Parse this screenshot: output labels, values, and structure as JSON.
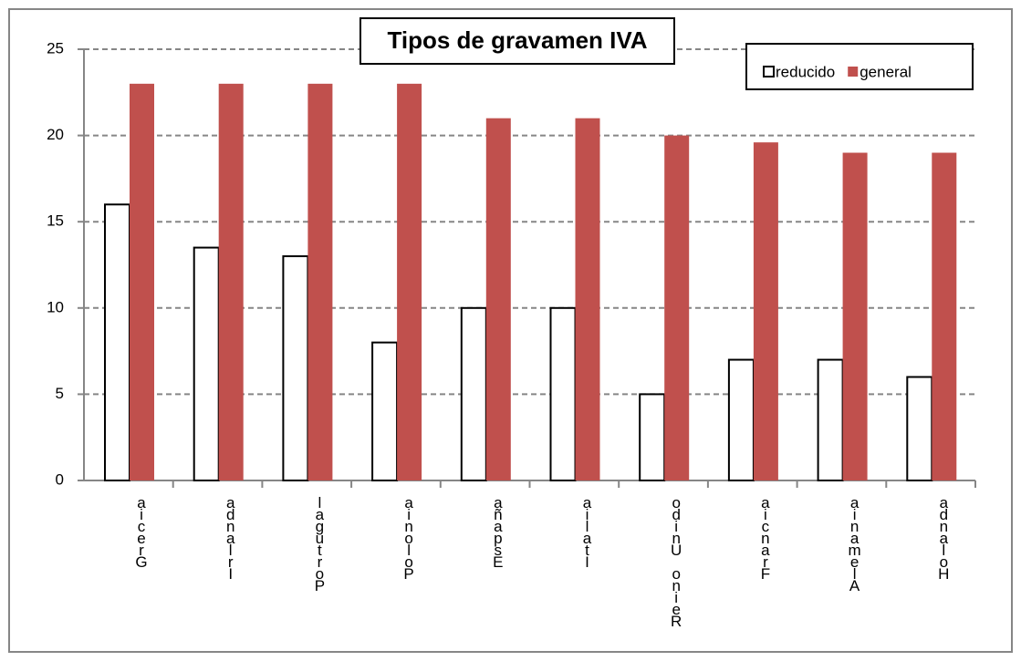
{
  "chart_data": {
    "type": "bar",
    "title": "Tipos de gravamen IVA",
    "categories": [
      "Grecia",
      "Irlanda",
      "Portugal",
      "Polonia",
      "España",
      "Italia",
      "Reino Unido",
      "Francia",
      "Alemania",
      "Holanda"
    ],
    "series": [
      {
        "name": "reducido",
        "color": "#ffffff",
        "values": [
          16,
          13.5,
          13,
          8,
          10,
          10,
          5,
          7,
          7,
          6
        ]
      },
      {
        "name": "general",
        "color": "#c0504d",
        "values": [
          23,
          23,
          23,
          23,
          21,
          21,
          20,
          19.6,
          19,
          19
        ]
      }
    ],
    "ylim": [
      0,
      25
    ],
    "yticks": [
      0,
      5,
      10,
      15,
      20,
      25
    ],
    "grid": true,
    "legend": "top-right"
  }
}
